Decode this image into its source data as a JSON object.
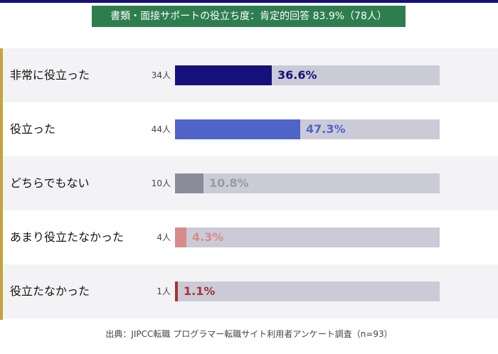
{
  "chart_data": {
    "type": "bar",
    "orientation": "horizontal",
    "title": "書類・面接サポートの役立ち度：肯定的回答 83.9%（78人）",
    "categories": [
      "非常に役立った",
      "役立った",
      "どちらでもない",
      "あまり役立たなかった",
      "役立たなかった"
    ],
    "counts": [
      "34人",
      "44人",
      "10人",
      "4人",
      "1人"
    ],
    "values": [
      36.6,
      47.3,
      10.8,
      4.3,
      1.1
    ],
    "value_labels": [
      "36.6%",
      "47.3%",
      "10.8%",
      "4.3%",
      "1.1%"
    ],
    "xlim": [
      0,
      100
    ],
    "bar_colors": [
      "#16107a",
      "#5065c9",
      "#8b8b99",
      "#d98a8a",
      "#a63232"
    ],
    "label_colors": [
      "#16107a",
      "#5065c9",
      "#9a9aa6",
      "#d98a8a",
      "#a63232"
    ],
    "track_color": "#cbcbd7",
    "grid": false,
    "source": "出典：JIPCC転職 プログラマー転職サイト利用者アンケート調査（n=93）"
  },
  "colors": {
    "top_line": "#16107a",
    "title_background": "#2e7d4f",
    "accent": "#c7a13a",
    "row_shade": "#f3f3f5"
  }
}
